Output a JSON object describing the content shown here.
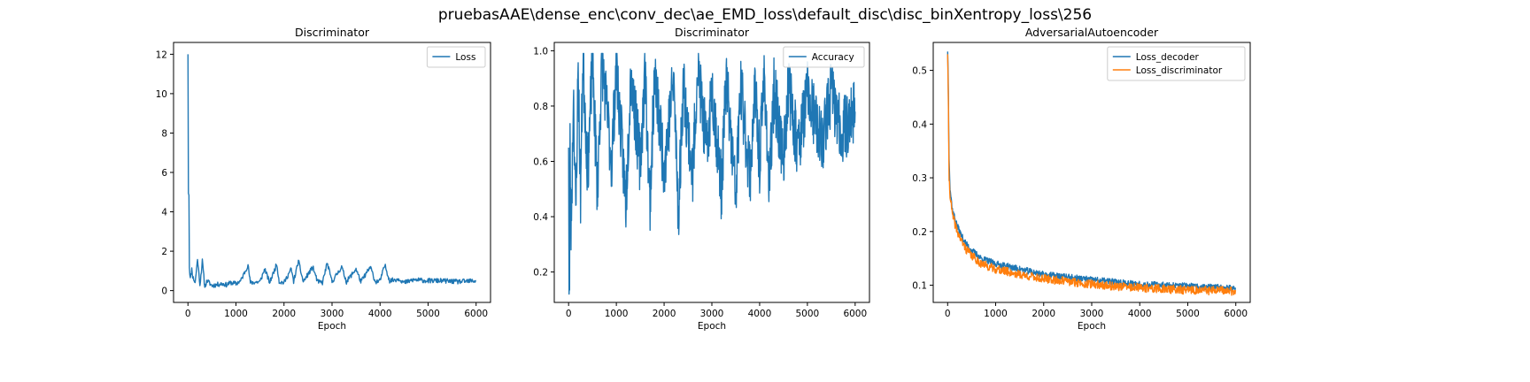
{
  "figure": {
    "suptitle": "pruebasAAE\\dense_enc\\conv_dec\\ae_EMD_loss\\default_disc\\disc_binXentropy_loss\\256"
  },
  "chart_data": [
    {
      "type": "line",
      "title": "Discriminator",
      "xlabel": "Epoch",
      "ylabel": "",
      "xlim": [
        -300,
        6300
      ],
      "ylim": [
        -0.6,
        12.6
      ],
      "xticks": [
        0,
        1000,
        2000,
        3000,
        4000,
        5000,
        6000
      ],
      "yticks": [
        0,
        2,
        4,
        6,
        8,
        10,
        12
      ],
      "legend": "top-right",
      "series": [
        {
          "name": "Loss",
          "color": "#1f77b4",
          "points": [
            [
              0,
              12.0
            ],
            [
              10,
              5.0
            ],
            [
              20,
              4.9
            ],
            [
              30,
              1.2
            ],
            [
              50,
              0.6
            ],
            [
              80,
              1.1
            ],
            [
              100,
              0.7
            ],
            [
              150,
              0.4
            ],
            [
              200,
              1.6
            ],
            [
              250,
              0.3
            ],
            [
              300,
              1.5
            ],
            [
              350,
              0.2
            ],
            [
              400,
              0.5
            ],
            [
              500,
              0.25
            ],
            [
              600,
              0.3
            ],
            [
              700,
              0.35
            ],
            [
              800,
              0.3
            ],
            [
              900,
              0.4
            ],
            [
              1000,
              0.35
            ],
            [
              1100,
              0.5
            ],
            [
              1250,
              1.3
            ],
            [
              1300,
              0.4
            ],
            [
              1500,
              0.45
            ],
            [
              1600,
              1.1
            ],
            [
              1700,
              0.4
            ],
            [
              1850,
              1.35
            ],
            [
              1900,
              0.45
            ],
            [
              2000,
              0.4
            ],
            [
              2150,
              1.1
            ],
            [
              2200,
              0.45
            ],
            [
              2300,
              1.5
            ],
            [
              2400,
              0.45
            ],
            [
              2600,
              1.2
            ],
            [
              2700,
              0.45
            ],
            [
              2800,
              0.4
            ],
            [
              2900,
              1.4
            ],
            [
              3000,
              0.45
            ],
            [
              3200,
              1.2
            ],
            [
              3300,
              0.45
            ],
            [
              3500,
              1.1
            ],
            [
              3600,
              0.45
            ],
            [
              3800,
              1.2
            ],
            [
              3900,
              0.45
            ],
            [
              4000,
              0.5
            ],
            [
              4100,
              1.3
            ],
            [
              4200,
              0.5
            ],
            [
              4400,
              0.6
            ],
            [
              4500,
              0.4
            ],
            [
              4700,
              0.55
            ],
            [
              5000,
              0.5
            ],
            [
              5300,
              0.5
            ],
            [
              5600,
              0.45
            ],
            [
              6000,
              0.5
            ]
          ]
        }
      ]
    },
    {
      "type": "line",
      "title": "Discriminator",
      "xlabel": "Epoch",
      "ylabel": "",
      "xlim": [
        -300,
        6300
      ],
      "ylim": [
        0.09,
        1.03
      ],
      "xticks": [
        0,
        1000,
        2000,
        3000,
        4000,
        5000,
        6000
      ],
      "yticks": [
        0.2,
        0.4,
        0.6,
        0.8,
        1.0
      ],
      "legend": "top-right",
      "series": [
        {
          "name": "Accuracy",
          "color": "#1f77b4",
          "points": [
            [
              0,
              0.65
            ],
            [
              10,
              0.14
            ],
            [
              20,
              0.13
            ],
            [
              30,
              0.66
            ],
            [
              50,
              0.35
            ],
            [
              80,
              0.6
            ],
            [
              100,
              0.88
            ],
            [
              150,
              0.39
            ],
            [
              200,
              0.95
            ],
            [
              250,
              0.48
            ],
            [
              300,
              0.98
            ],
            [
              400,
              0.56
            ],
            [
              500,
              0.97
            ],
            [
              600,
              0.5
            ],
            [
              700,
              0.96
            ],
            [
              900,
              0.6
            ],
            [
              1000,
              0.95
            ],
            [
              1200,
              0.45
            ],
            [
              1300,
              0.92
            ],
            [
              1500,
              0.59
            ],
            [
              1600,
              0.93
            ],
            [
              1700,
              0.44
            ],
            [
              1800,
              0.91
            ],
            [
              2000,
              0.58
            ],
            [
              2200,
              0.9
            ],
            [
              2300,
              0.41
            ],
            [
              2400,
              0.88
            ],
            [
              2600,
              0.55
            ],
            [
              2700,
              0.95
            ],
            [
              2900,
              0.62
            ],
            [
              3000,
              0.88
            ],
            [
              3200,
              0.5
            ],
            [
              3300,
              0.9
            ],
            [
              3500,
              0.47
            ],
            [
              3600,
              0.87
            ],
            [
              3800,
              0.55
            ],
            [
              3900,
              0.86
            ],
            [
              4000,
              0.6
            ],
            [
              4100,
              0.92
            ],
            [
              4200,
              0.49
            ],
            [
              4300,
              0.86
            ],
            [
              4500,
              0.6
            ],
            [
              4600,
              0.88
            ],
            [
              4800,
              0.65
            ],
            [
              5000,
              0.85
            ],
            [
              5300,
              0.66
            ],
            [
              5500,
              0.86
            ],
            [
              5700,
              0.7
            ],
            [
              6000,
              0.78
            ]
          ]
        }
      ]
    },
    {
      "type": "line",
      "title": "AdversarialAutoencoder",
      "xlabel": "Epoch",
      "ylabel": "",
      "xlim": [
        -300,
        6300
      ],
      "ylim": [
        0.068,
        0.552
      ],
      "xticks": [
        0,
        1000,
        2000,
        3000,
        4000,
        5000,
        6000
      ],
      "yticks": [
        0.1,
        0.2,
        0.3,
        0.4,
        0.5
      ],
      "legend": "top-right",
      "series": [
        {
          "name": "Loss_decoder",
          "color": "#1f77b4",
          "points": [
            [
              0,
              0.535
            ],
            [
              10,
              0.5
            ],
            [
              30,
              0.34
            ],
            [
              50,
              0.28
            ],
            [
              100,
              0.24
            ],
            [
              200,
              0.21
            ],
            [
              300,
              0.19
            ],
            [
              400,
              0.175
            ],
            [
              500,
              0.165
            ],
            [
              700,
              0.15
            ],
            [
              1000,
              0.14
            ],
            [
              1500,
              0.13
            ],
            [
              2000,
              0.12
            ],
            [
              2500,
              0.115
            ],
            [
              3000,
              0.11
            ],
            [
              3500,
              0.106
            ],
            [
              4000,
              0.102
            ],
            [
              4500,
              0.1
            ],
            [
              5000,
              0.098
            ],
            [
              5500,
              0.096
            ],
            [
              6000,
              0.095
            ]
          ]
        },
        {
          "name": "Loss_discriminator",
          "color": "#ff7f0e",
          "points": [
            [
              0,
              0.53
            ],
            [
              10,
              0.48
            ],
            [
              30,
              0.3
            ],
            [
              50,
              0.27
            ],
            [
              100,
              0.23
            ],
            [
              200,
              0.2
            ],
            [
              300,
              0.18
            ],
            [
              400,
              0.165
            ],
            [
              500,
              0.155
            ],
            [
              700,
              0.14
            ],
            [
              1000,
              0.13
            ],
            [
              1500,
              0.12
            ],
            [
              2000,
              0.112
            ],
            [
              2500,
              0.107
            ],
            [
              3000,
              0.102
            ],
            [
              3500,
              0.098
            ],
            [
              4000,
              0.095
            ],
            [
              4500,
              0.093
            ],
            [
              5000,
              0.091
            ],
            [
              5500,
              0.09
            ],
            [
              6000,
              0.089
            ]
          ]
        }
      ]
    }
  ]
}
